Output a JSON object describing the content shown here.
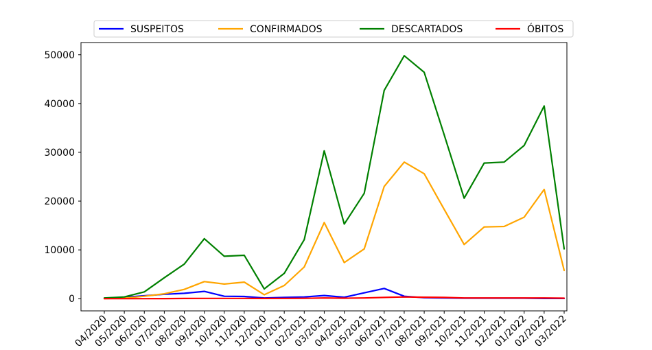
{
  "chart_data": {
    "type": "line",
    "categories": [
      "04/2020",
      "05/2020",
      "06/2020",
      "07/2020",
      "08/2020",
      "09/2020",
      "10/2020",
      "11/2020",
      "12/2020",
      "01/2021",
      "02/2021",
      "03/2021",
      "04/2021",
      "05/2021",
      "06/2021",
      "07/2021",
      "08/2021",
      "09/2021",
      "10/2021",
      "11/2021",
      "12/2021",
      "01/2022",
      "02/2022",
      "03/2022"
    ],
    "series": [
      {
        "name": "SUSPEITOS",
        "color": "#0000ff",
        "values": [
          100,
          300,
          600,
          900,
          1100,
          1500,
          500,
          450,
          150,
          250,
          350,
          650,
          300,
          1200,
          2100,
          500,
          200,
          150,
          100,
          100,
          100,
          100,
          50,
          50
        ]
      },
      {
        "name": "CONFIRMADOS",
        "color": "#ffa500",
        "values": [
          0,
          100,
          500,
          1000,
          1900,
          3500,
          3000,
          3400,
          800,
          2700,
          6500,
          15600,
          7400,
          10200,
          23000,
          28000,
          25600,
          18300,
          11100,
          14700,
          14800,
          16700,
          22400,
          5800
        ]
      },
      {
        "name": "DESCARTADOS",
        "color": "#008000",
        "values": [
          150,
          350,
          1400,
          4300,
          7100,
          12300,
          8700,
          8900,
          2000,
          5200,
          12100,
          30300,
          15300,
          21600,
          42700,
          49800,
          46400,
          33600,
          20600,
          27800,
          28000,
          31400,
          39500,
          10200
        ]
      },
      {
        "name": "ÓBITOS",
        "color": "#ff0000",
        "values": [
          0,
          0,
          0,
          20,
          40,
          60,
          60,
          60,
          50,
          60,
          80,
          150,
          100,
          150,
          250,
          350,
          300,
          250,
          150,
          150,
          150,
          150,
          150,
          100
        ]
      }
    ],
    "y_ticks": [
      "0",
      "10000",
      "20000",
      "30000",
      "40000",
      "50000"
    ],
    "ylim": [
      -2500,
      52500
    ],
    "legend_position": "top-center",
    "grid": false
  }
}
